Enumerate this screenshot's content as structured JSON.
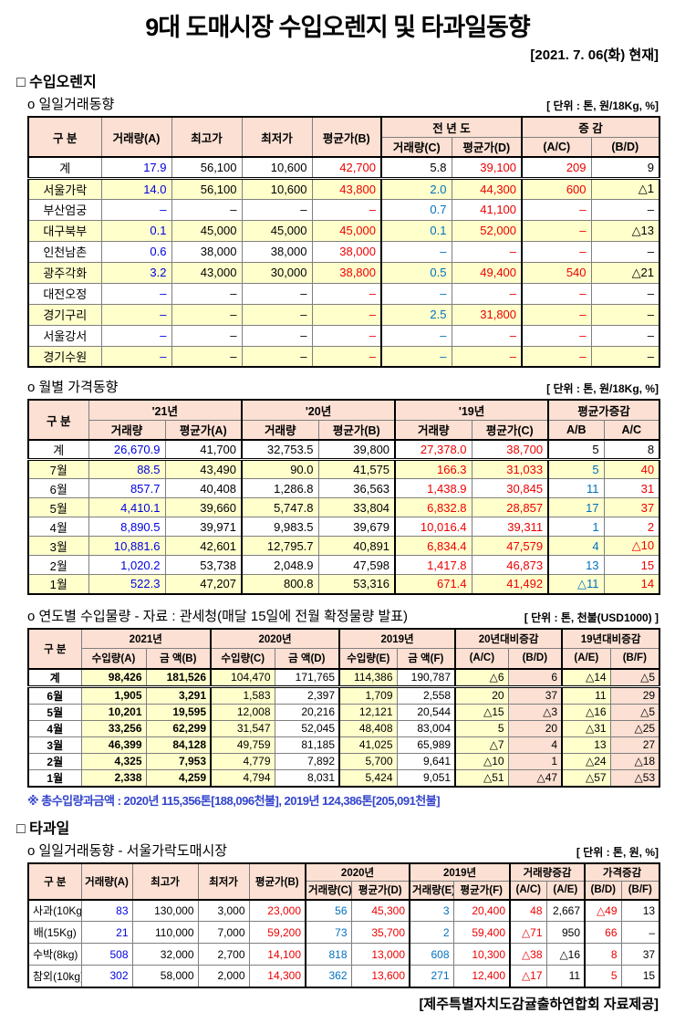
{
  "title": "9대 도매시장 수입오렌지 및 타과일동향",
  "date_note": "[2021. 7. 06(화) 현재]",
  "footer_credit": "[제주특별자치도감귤출하연합회 자료제공]",
  "colors": {
    "volume_blue": "#0000E0",
    "prev_year_blue": "#0070C0",
    "price_red": "#EE0000",
    "text_black": "#000000",
    "header_bg": "#FBE0D3",
    "zebra_bg": "#FFFFCC",
    "pink_col_bg": "#FBE0D3"
  },
  "sections": {
    "orange_heading": "□ 수입오렌지",
    "daily_label": "o 일일거래동향",
    "daily_unit": "[ 단위 : 톤, 원/18Kg, %]",
    "monthly_label": "o 월별 가격동향",
    "monthly_unit": "[ 단위 : 톤, 원/18Kg, %]",
    "yearly_label": "o 연도별 수입물량 - 자료 : 관세청(매달 15일에 전월 확정물량 발표)",
    "yearly_unit": "[ 단위 : 톤, 천불(USD1000) ]",
    "yearly_footnote": "※ 총수입량과금액 : 2020년 115,356톤[188,096천불],  2019년 124,386톤[205,091천불]",
    "fruit_heading": "□ 타과일",
    "fruit_label": "o 일일거래동향 - 서울가락도매시장",
    "fruit_unit": "[ 단위 : 톤, 원, %]"
  },
  "tables": {
    "daily": {
      "header": [
        [
          {
            "t": "구  분",
            "rs": 2
          },
          {
            "t": "거래량(A)",
            "rs": 2
          },
          {
            "t": "최고가",
            "rs": 2
          },
          {
            "t": "최저가",
            "rs": 2
          },
          {
            "t": "평균가(B)",
            "rs": 2
          },
          {
            "t": "전 년 도",
            "cs": 2,
            "cls": "gs"
          },
          {
            "t": "증  감",
            "cs": 2,
            "cls": "gs"
          }
        ],
        [
          {
            "t": "거래량(C)",
            "cls": "gs"
          },
          {
            "t": "평균가(D)"
          },
          {
            "t": "(A/C)",
            "cls": "gs"
          },
          {
            "t": "(B/D)"
          }
        ]
      ],
      "col_colors": [
        "k",
        "b",
        "k",
        "k",
        "r",
        "c",
        "r",
        "r",
        "k"
      ],
      "overrides": {
        "0,5": "k"
      },
      "rows": [
        [
          "계",
          "17.9",
          "56,100",
          "10,600",
          "42,700",
          "5.8",
          "39,100",
          "209",
          "9"
        ],
        [
          "서울가락",
          "14.0",
          "56,100",
          "10,600",
          "43,800",
          "2.0",
          "44,300",
          "600",
          "△1"
        ],
        [
          "부산엄궁",
          "–",
          "–",
          "–",
          "–",
          "0.7",
          "41,100",
          "–",
          "–"
        ],
        [
          "대구북부",
          "0.1",
          "45,000",
          "45,000",
          "45,000",
          "0.1",
          "52,000",
          "–",
          "△13"
        ],
        [
          "인천남촌",
          "0.6",
          "38,000",
          "38,000",
          "38,000",
          "–",
          "–",
          "–",
          "–"
        ],
        [
          "광주각화",
          "3.2",
          "43,000",
          "30,000",
          "38,800",
          "0.5",
          "49,400",
          "540",
          "△21"
        ],
        [
          "대전오정",
          "–",
          "–",
          "–",
          "–",
          "–",
          "–",
          "–",
          "–"
        ],
        [
          "경기구리",
          "–",
          "–",
          "–",
          "–",
          "2.5",
          "31,800",
          "–",
          "–"
        ],
        [
          "서울강서",
          "–",
          "–",
          "–",
          "–",
          "–",
          "–",
          "–",
          "–"
        ],
        [
          "경기수원",
          "–",
          "–",
          "–",
          "–",
          "–",
          "–",
          "–",
          "–"
        ]
      ]
    },
    "monthly": {
      "header": [
        [
          {
            "t": "구  분",
            "rs": 2
          },
          {
            "t": "'21년",
            "cs": 2
          },
          {
            "t": "'20년",
            "cs": 2,
            "cls": "gs"
          },
          {
            "t": "'19년",
            "cs": 2,
            "cls": "gs"
          },
          {
            "t": "평균가증감",
            "cs": 2,
            "cls": "gs"
          }
        ],
        [
          {
            "t": "거래량"
          },
          {
            "t": "평균가(A)",
            "cls": "dot"
          },
          {
            "t": "거래량",
            "cls": "gs"
          },
          {
            "t": "평균가(B)",
            "cls": "dot"
          },
          {
            "t": "거래량",
            "cls": "gs"
          },
          {
            "t": "평균가(C)",
            "cls": "dot"
          },
          {
            "t": "A/B",
            "cls": "gs"
          },
          {
            "t": "A/C",
            "cls": "dot"
          }
        ]
      ],
      "col_colors": [
        "k",
        "b",
        "k",
        "k",
        "k",
        "r",
        "r",
        "c",
        "r"
      ],
      "overrides": {
        "0,7": "k",
        "0,8": "k"
      },
      "rows": [
        [
          "계",
          "26,670.9",
          "41,700",
          "32,753.5",
          "39,800",
          "27,378.0",
          "38,700",
          "5",
          "8"
        ],
        [
          "7월",
          "88.5",
          "43,490",
          "90.0",
          "41,575",
          "166.3",
          "31,033",
          "5",
          "40"
        ],
        [
          "6월",
          "857.7",
          "40,408",
          "1,286.8",
          "36,563",
          "1,438.9",
          "30,845",
          "11",
          "31"
        ],
        [
          "5월",
          "4,410.1",
          "39,660",
          "5,747.8",
          "33,804",
          "6,832.8",
          "28,857",
          "17",
          "37"
        ],
        [
          "4월",
          "8,890.5",
          "39,971",
          "9,983.5",
          "39,679",
          "10,016.4",
          "39,311",
          "1",
          "2"
        ],
        [
          "3월",
          "10,881.6",
          "42,601",
          "12,795.7",
          "40,891",
          "6,834.4",
          "47,579",
          "4",
          "△10"
        ],
        [
          "2월",
          "1,020.2",
          "53,738",
          "2,048.9",
          "47,598",
          "1,417.8",
          "46,873",
          "13",
          "15"
        ],
        [
          "1월",
          "522.3",
          "47,207",
          "800.8",
          "53,316",
          "671.4",
          "41,492",
          "△11",
          "14"
        ]
      ]
    },
    "yearly": {
      "header": [
        [
          {
            "t": "구 분",
            "rs": 2
          },
          {
            "t": "2021년",
            "cs": 2
          },
          {
            "t": "2020년",
            "cs": 2,
            "cls": "gs"
          },
          {
            "t": "2019년",
            "cs": 2,
            "cls": "gs"
          },
          {
            "t": "20년대비증감",
            "cs": 2,
            "cls": "gs"
          },
          {
            "t": "19년대비증감",
            "cs": 2,
            "cls": "gs"
          }
        ],
        [
          {
            "t": "수입량(A)"
          },
          {
            "t": "금 액(B)"
          },
          {
            "t": "수입량(C)",
            "cls": "gs"
          },
          {
            "t": "금 액(D)"
          },
          {
            "t": "수입량(E)",
            "cls": "gs"
          },
          {
            "t": "금 액(F)"
          },
          {
            "t": "(A/C)",
            "cls": "gs"
          },
          {
            "t": "(B/D)"
          },
          {
            "t": "(A/E)",
            "cls": "gs"
          },
          {
            "t": "(B/F)"
          }
        ]
      ],
      "col_colors": [
        "k",
        "k",
        "k",
        "k",
        "k",
        "k",
        "k",
        "k",
        "k",
        "k",
        "k"
      ],
      "overrides": {},
      "rows": [
        [
          "계",
          "98,426",
          "181,526",
          "104,470",
          "171,765",
          "114,386",
          "190,787",
          "△6",
          "6",
          "△14",
          "△5"
        ],
        [
          "6월",
          "1,905",
          "3,291",
          "1,583",
          "2,397",
          "1,709",
          "2,558",
          "20",
          "37",
          "11",
          "29"
        ],
        [
          "5월",
          "10,201",
          "19,595",
          "12,008",
          "20,216",
          "12,121",
          "20,544",
          "△15",
          "△3",
          "△16",
          "△5"
        ],
        [
          "4월",
          "33,256",
          "62,299",
          "31,547",
          "52,045",
          "48,408",
          "83,004",
          "5",
          "20",
          "△31",
          "△25"
        ],
        [
          "3월",
          "46,399",
          "84,128",
          "49,759",
          "81,185",
          "41,025",
          "65,989",
          "△7",
          "4",
          "13",
          "27"
        ],
        [
          "2월",
          "4,325",
          "7,953",
          "4,779",
          "7,892",
          "5,700",
          "9,641",
          "△10",
          "1",
          "△24",
          "△18"
        ],
        [
          "1월",
          "2,338",
          "4,259",
          "4,794",
          "8,031",
          "5,424",
          "9,051",
          "△51",
          "△47",
          "△57",
          "△53"
        ]
      ]
    },
    "fruit": {
      "header": [
        [
          {
            "t": "구 분",
            "rs": 2
          },
          {
            "t": "거래량(A)",
            "rs": 2
          },
          {
            "t": "최고가",
            "rs": 2
          },
          {
            "t": "최저가",
            "rs": 2
          },
          {
            "t": "평균가(B)",
            "rs": 2
          },
          {
            "t": "2020년",
            "cs": 2,
            "cls": "gs"
          },
          {
            "t": "2019년",
            "cs": 2,
            "cls": "gs"
          },
          {
            "t": "거래량증감",
            "cs": 2,
            "cls": "gs"
          },
          {
            "t": "가격증감",
            "cs": 2,
            "cls": "gs"
          }
        ],
        [
          {
            "t": "거래량(C)",
            "cls": "gs"
          },
          {
            "t": "평균가(D)"
          },
          {
            "t": "거래량(E)",
            "cls": "gs"
          },
          {
            "t": "평균가(F)"
          },
          {
            "t": "(A/C)",
            "cls": "gs"
          },
          {
            "t": "(A/E)"
          },
          {
            "t": "(B/D)",
            "cls": "gs"
          },
          {
            "t": "(B/F)"
          }
        ]
      ],
      "col_colors": [
        "k",
        "b",
        "k",
        "k",
        "r",
        "c",
        "r",
        "c",
        "r",
        "r",
        "k",
        "r",
        "k"
      ],
      "overrides": {},
      "rows": [
        [
          "사과(10Kg)",
          "83",
          "130,000",
          "3,000",
          "23,000",
          "56",
          "45,300",
          "3",
          "20,400",
          "48",
          "2,667",
          "△49",
          "13"
        ],
        [
          "배(15Kg)",
          "21",
          "110,000",
          "7,000",
          "59,200",
          "73",
          "35,700",
          "2",
          "59,400",
          "△71",
          "950",
          "66",
          "–"
        ],
        [
          "수박(8kg)",
          "508",
          "32,000",
          "2,700",
          "14,100",
          "818",
          "13,000",
          "608",
          "10,300",
          "△38",
          "△16",
          "8",
          "37"
        ],
        [
          "참외(10kg)",
          "302",
          "58,000",
          "2,000",
          "14,300",
          "362",
          "13,600",
          "271",
          "12,400",
          "△17",
          "11",
          "5",
          "15"
        ]
      ]
    }
  }
}
